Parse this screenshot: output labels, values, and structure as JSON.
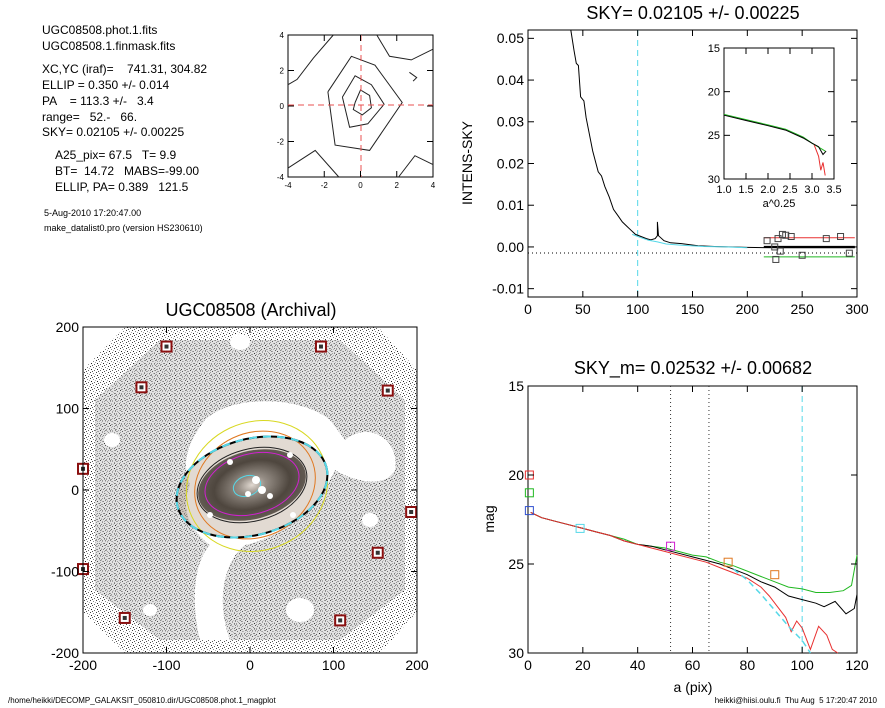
{
  "info_block": {
    "lines": [
      "UGC08508.phot.1.fits",
      "UGC08508.1.finmask.fits",
      "XC,YC (iraf)=    741.31, 304.82",
      "ELLIP = 0.350 +/- 0.014",
      "PA    = 113.3 +/-   3.4",
      "range=   52.-   66.",
      "SKY= 0.02105 +/- 0.00225",
      "A25_pix= 67.5   T= 9.9",
      "BT=  14.72   MABS=-99.00",
      "ELLIP, PA= 0.389   121.5",
      "5-Aug-2010 17:20:47.00",
      "make_datalist0.pro (version HS230610)"
    ]
  },
  "footer": {
    "path": "/home/heikki/DECOMP_GALAKSIT_050810.dir/UGC08508.phot.1_magplot",
    "stamp": "heikki@hiisi.oulu.fi  Thu Aug  5 17:20:47 2010"
  },
  "colors": {
    "cyan": "#55d8e8",
    "red": "#e83030",
    "green": "#20b820",
    "black": "#000000",
    "magenta": "#d020d0",
    "orange": "#e07820",
    "yellow": "#d8d820",
    "dark_red": "#8a1010"
  },
  "chart_data": [
    {
      "id": "contour",
      "type": "contour",
      "title": "",
      "xlim": [
        -4,
        4
      ],
      "ylim": [
        -4,
        4
      ],
      "xticks": [
        "-4",
        "-2",
        "0",
        "2",
        "4"
      ],
      "yticks": [
        "-4",
        "-2",
        "0",
        "2",
        "4"
      ],
      "crosshair": [
        0,
        0
      ],
      "levels": [
        [
          [
            -0.3,
            0.2
          ],
          [
            0,
            0.9
          ],
          [
            0.5,
            0.6
          ],
          [
            0.6,
            -0.1
          ],
          [
            0.1,
            -0.5
          ],
          [
            -0.4,
            -0.2
          ]
        ],
        [
          [
            -1.0,
            0.5
          ],
          [
            -0.3,
            1.7
          ],
          [
            0.6,
            1.2
          ],
          [
            1.3,
            0.1
          ],
          [
            0.4,
            -1.0
          ],
          [
            -0.6,
            -1.2
          ]
        ],
        [
          [
            -1.8,
            0.8
          ],
          [
            -0.5,
            2.8
          ],
          [
            0.8,
            2.3
          ],
          [
            2.3,
            0.2
          ],
          [
            0.5,
            -2.5
          ],
          [
            -1.4,
            -2.2
          ]
        ],
        [
          [
            -4,
            1.2
          ],
          [
            -3.5,
            1.5
          ],
          [
            -2.6,
            2.7
          ],
          [
            -1.5,
            4
          ]
        ],
        [
          [
            -4,
            -3.5
          ],
          [
            -2.5,
            -2.5
          ],
          [
            -1.2,
            -4
          ]
        ],
        [
          [
            0.9,
            4
          ],
          [
            1.6,
            2.8
          ],
          [
            2.8,
            2.6
          ],
          [
            4,
            3.2
          ]
        ],
        [
          [
            2.1,
            -4
          ],
          [
            3.0,
            -2.8
          ],
          [
            4,
            -3.3
          ]
        ],
        [
          [
            2.7,
            1.9
          ],
          [
            3.1,
            1.6
          ],
          [
            2.9,
            1.4
          ]
        ]
      ]
    },
    {
      "id": "sky",
      "type": "line",
      "title": "SKY= 0.02105 +/- 0.00225",
      "ylabel": "INTENS-SKY",
      "xlabel": "",
      "xlim": [
        0,
        300
      ],
      "ylim": [
        -0.012,
        0.052
      ],
      "xticks": [
        "0",
        "50",
        "100",
        "150",
        "200",
        "250",
        "300"
      ],
      "yticks": [
        "-0.01",
        "0.00",
        "0.01",
        "0.02",
        "0.03",
        "0.04",
        "0.05"
      ],
      "vline": 100,
      "series": [
        {
          "color": "black",
          "points": [
            [
              39,
              0.052
            ],
            [
              42,
              0.047
            ],
            [
              44,
              0.044
            ],
            [
              46,
              0.0435
            ],
            [
              48,
              0.036
            ],
            [
              51,
              0.035
            ],
            [
              53,
              0.031
            ],
            [
              56,
              0.027
            ],
            [
              59,
              0.023
            ],
            [
              62,
              0.02
            ],
            [
              64,
              0.018
            ],
            [
              67,
              0.017
            ],
            [
              70,
              0.0145
            ],
            [
              74,
              0.012
            ],
            [
              78,
              0.009
            ],
            [
              82,
              0.0075
            ],
            [
              86,
              0.006
            ],
            [
              90,
              0.005
            ],
            [
              94,
              0.004
            ],
            [
              98,
              0.003
            ],
            [
              103,
              0.0025
            ],
            [
              108,
              0.002
            ],
            [
              112,
              0.0017
            ],
            [
              116,
              0.002
            ],
            [
              118,
              0.0027
            ],
            [
              118,
              0.006
            ],
            [
              119,
              0.0027
            ],
            [
              124,
              0.0015
            ],
            [
              130,
              0.001
            ],
            [
              140,
              0.0008
            ],
            [
              155,
              0.0003
            ],
            [
              170,
              0.0001
            ],
            [
              200,
              -0.0001
            ],
            [
              230,
              -0.0002
            ],
            [
              260,
              -0.0002
            ],
            [
              298,
              -0.0002
            ]
          ]
        },
        {
          "color": "cyan",
          "points": [
            [
              95,
              0.003
            ],
            [
              102,
              0.0023
            ],
            [
              110,
              0.0016
            ],
            [
              118,
              0.0012
            ],
            [
              126,
              0.0007
            ],
            [
              140,
              0.0004
            ],
            [
              160,
              0.0001
            ],
            [
              180,
              0.0
            ],
            [
              200,
              -0.0002
            ]
          ]
        },
        {
          "color": "red",
          "points": [
            [
              215,
              0.0022
            ],
            [
              298,
              0.0022
            ]
          ]
        },
        {
          "color": "green",
          "points": [
            [
              215,
              -0.0024
            ],
            [
              298,
              -0.0024
            ]
          ]
        },
        {
          "color": "black",
          "points": [
            [
              215,
              0.0
            ],
            [
              298,
              0.0
            ]
          ]
        }
      ],
      "squares": [
        [
          218,
          0.0015
        ],
        [
          228,
          0.002
        ],
        [
          232,
          0.003
        ],
        [
          235,
          0.0028
        ],
        [
          240,
          0.0025
        ],
        [
          225,
          0.0
        ],
        [
          230,
          -0.001
        ],
        [
          226,
          -0.003
        ],
        [
          250,
          -0.002
        ],
        [
          272,
          0.002
        ],
        [
          285,
          0.0025
        ],
        [
          293,
          -0.0015
        ]
      ],
      "inset": {
        "xlabel": "a^0.25",
        "xlim": [
          1.0,
          3.5
        ],
        "ylim": [
          15,
          30
        ],
        "xticks": [
          "1.0",
          "1.5",
          "2.0",
          "2.5",
          "3.0",
          "3.5"
        ],
        "yticks": [
          "15",
          "20",
          "25",
          "30"
        ],
        "series": [
          {
            "color": "green",
            "points": [
              [
                1.0,
                22.6
              ],
              [
                1.5,
                23.2
              ],
              [
                2.0,
                23.8
              ],
              [
                2.4,
                24.3
              ],
              [
                2.8,
                25.2
              ],
              [
                3.0,
                25.9
              ],
              [
                3.2,
                26.5
              ],
              [
                3.3,
                26.8
              ]
            ]
          },
          {
            "color": "black",
            "points": [
              [
                1.0,
                22.7
              ],
              [
                1.5,
                23.3
              ],
              [
                2.0,
                23.9
              ],
              [
                2.4,
                24.4
              ],
              [
                2.8,
                25.3
              ],
              [
                3.0,
                25.9
              ],
              [
                3.15,
                26.3
              ],
              [
                3.25,
                27.2
              ],
              [
                3.32,
                26.8
              ]
            ]
          },
          {
            "color": "red",
            "points": [
              [
                3.05,
                26.1
              ],
              [
                3.15,
                27.4
              ],
              [
                3.2,
                29.0
              ],
              [
                3.25,
                28.1
              ],
              [
                3.3,
                29.6
              ]
            ]
          }
        ]
      }
    },
    {
      "id": "image",
      "type": "image",
      "title": "UGC08508 (Archival)",
      "xlim": [
        -200,
        200
      ],
      "ylim": [
        -200,
        200
      ],
      "xticks": [
        "-200",
        "-100",
        "0",
        "100",
        "200"
      ],
      "yticks": [
        "-200",
        "-100",
        "0",
        "100",
        "200"
      ],
      "markers": [
        [
          -100,
          176
        ],
        [
          -130,
          126
        ],
        [
          85,
          176
        ],
        [
          165,
          122
        ],
        [
          -200,
          26
        ],
        [
          193,
          -27
        ],
        [
          153,
          -77
        ],
        [
          -200,
          -97
        ],
        [
          -150,
          -157
        ],
        [
          108,
          -160
        ]
      ]
    },
    {
      "id": "mag",
      "type": "line",
      "title": "SKY_m=  0.02532 +/- 0.00682",
      "xlabel": "a (pix)",
      "ylabel": "mag",
      "xlim": [
        0,
        120
      ],
      "ylim": [
        30,
        15
      ],
      "xticks": [
        "0",
        "20",
        "40",
        "60",
        "80",
        "100",
        "120"
      ],
      "yticks": [
        "15",
        "20",
        "25",
        "30"
      ],
      "vlines_dotted": [
        52,
        66
      ],
      "vline_dashed": 100,
      "series": [
        {
          "color": "green",
          "points": [
            [
              1,
              22.1
            ],
            [
              5,
              22.4
            ],
            [
              10,
              22.6
            ],
            [
              15,
              22.8
            ],
            [
              20,
              23.0
            ],
            [
              25,
              23.2
            ],
            [
              30,
              23.4
            ],
            [
              35,
              23.6
            ],
            [
              40,
              23.9
            ],
            [
              45,
              24.0
            ],
            [
              50,
              24.1
            ],
            [
              55,
              24.3
            ],
            [
              60,
              24.5
            ],
            [
              65,
              24.6
            ],
            [
              70,
              24.9
            ],
            [
              75,
              25.1
            ],
            [
              80,
              25.4
            ],
            [
              85,
              25.7
            ],
            [
              90,
              26.0
            ],
            [
              95,
              26.3
            ],
            [
              100,
              26.4
            ],
            [
              105,
              26.6
            ],
            [
              110,
              26.6
            ],
            [
              115,
              26.5
            ],
            [
              118,
              26.2
            ],
            [
              120,
              24.5
            ]
          ]
        },
        {
          "color": "black",
          "points": [
            [
              1,
              22.1
            ],
            [
              5,
              22.4
            ],
            [
              10,
              22.6
            ],
            [
              15,
              22.8
            ],
            [
              20,
              23.0
            ],
            [
              25,
              23.2
            ],
            [
              30,
              23.4
            ],
            [
              35,
              23.7
            ],
            [
              40,
              23.9
            ],
            [
              45,
              24.0
            ],
            [
              50,
              24.2
            ],
            [
              55,
              24.4
            ],
            [
              60,
              24.6
            ],
            [
              65,
              24.8
            ],
            [
              70,
              25.0
            ],
            [
              75,
              25.3
            ],
            [
              80,
              25.6
            ],
            [
              85,
              26.0
            ],
            [
              90,
              26.3
            ],
            [
              95,
              26.8
            ],
            [
              100,
              27.0
            ],
            [
              105,
              27.2
            ],
            [
              108,
              27.4
            ],
            [
              112,
              27.1
            ],
            [
              116,
              27.8
            ],
            [
              119,
              27.5
            ],
            [
              120,
              26.7
            ]
          ]
        },
        {
          "color": "red",
          "points": [
            [
              1,
              22.1
            ],
            [
              5,
              22.4
            ],
            [
              10,
              22.6
            ],
            [
              15,
              22.8
            ],
            [
              20,
              23.0
            ],
            [
              25,
              23.2
            ],
            [
              30,
              23.4
            ],
            [
              35,
              23.7
            ],
            [
              40,
              23.9
            ],
            [
              45,
              24.1
            ],
            [
              50,
              24.3
            ],
            [
              55,
              24.5
            ],
            [
              60,
              24.7
            ],
            [
              65,
              24.9
            ],
            [
              70,
              25.2
            ],
            [
              75,
              25.5
            ],
            [
              80,
              25.8
            ],
            [
              85,
              26.3
            ],
            [
              88,
              26.8
            ],
            [
              91,
              27.4
            ],
            [
              94,
              28.0
            ],
            [
              96,
              28.8
            ],
            [
              98,
              28.2
            ],
            [
              100,
              28.6
            ],
            [
              103,
              29.8
            ],
            [
              106,
              28.5
            ],
            [
              109,
              29.0
            ],
            [
              111,
              29.8
            ],
            [
              113,
              30.0
            ]
          ]
        },
        {
          "color": "cyan",
          "dashed": true,
          "points": [
            [
              75,
              25.3
            ],
            [
              80,
              25.9
            ],
            [
              85,
              26.7
            ],
            [
              90,
              27.6
            ],
            [
              95,
              28.5
            ],
            [
              100,
              29.3
            ],
            [
              103,
              30.0
            ]
          ]
        }
      ],
      "squares": [
        {
          "color": "red",
          "xy": [
            0.5,
            20.0
          ]
        },
        {
          "color": "green",
          "xy": [
            0.5,
            21.0
          ]
        },
        {
          "color": "blue",
          "xy": [
            0.5,
            22.0
          ]
        },
        {
          "color": "cyan",
          "xy": [
            19,
            23.0
          ]
        },
        {
          "color": "magenta",
          "xy": [
            52,
            24.0
          ]
        },
        {
          "color": "orange",
          "xy": [
            73,
            24.9
          ]
        },
        {
          "color": "orange",
          "xy": [
            90,
            25.6
          ]
        }
      ]
    }
  ]
}
